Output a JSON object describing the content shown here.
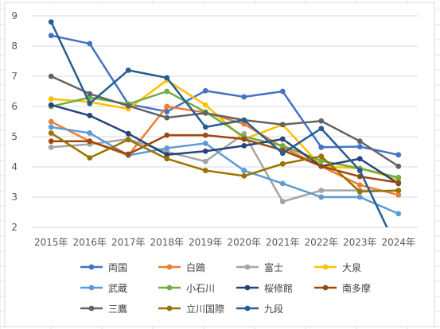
{
  "chart_data": {
    "type": "line",
    "categories": [
      "2015年",
      "2016年",
      "2017年",
      "2018年",
      "2019年",
      "2020年",
      "2021年",
      "2022年",
      "2023年",
      "2024年"
    ],
    "ylim": [
      2,
      9
    ],
    "yticks": [
      "2",
      "3",
      "4",
      "5",
      "6",
      "7",
      "8",
      "9"
    ],
    "grid": true,
    "legend_position": "bottom",
    "series": [
      {
        "name": "両国",
        "color": "#4472C4",
        "values": [
          8.35,
          8.08,
          6.08,
          5.83,
          6.52,
          6.32,
          6.5,
          4.65,
          4.67,
          4.4
        ]
      },
      {
        "name": "白鴎",
        "color": "#ED7D31",
        "values": [
          5.5,
          4.85,
          4.38,
          6.0,
          5.8,
          5.42,
          4.65,
          4.02,
          3.4,
          3.07
        ]
      },
      {
        "name": "富士",
        "color": "#A5A5A5",
        "values": [
          4.65,
          4.75,
          4.92,
          4.5,
          4.18,
          5.1,
          2.85,
          3.22,
          3.22,
          3.2
        ]
      },
      {
        "name": "大泉",
        "color": "#FFC000",
        "values": [
          6.25,
          6.15,
          5.92,
          6.87,
          6.05,
          4.92,
          5.4,
          4.02,
          3.95,
          3.6
        ]
      },
      {
        "name": "武蔵",
        "color": "#5B9BD5",
        "values": [
          5.32,
          5.12,
          4.38,
          4.62,
          4.78,
          3.88,
          3.45,
          3.0,
          3.0,
          2.45
        ]
      },
      {
        "name": "小石川",
        "color": "#70AD47",
        "values": [
          6.0,
          6.3,
          6.08,
          6.5,
          5.82,
          5.0,
          4.7,
          4.2,
          3.95,
          3.65
        ]
      },
      {
        "name": "桜修館",
        "color": "#264478",
        "values": [
          6.05,
          5.7,
          5.1,
          4.4,
          4.52,
          4.7,
          4.92,
          4.02,
          4.27,
          3.45
        ]
      },
      {
        "name": "南多摩",
        "color": "#9E480E",
        "values": [
          4.85,
          4.85,
          4.42,
          5.05,
          5.05,
          4.92,
          4.55,
          4.02,
          3.68,
          3.48
        ]
      },
      {
        "name": "三鷹",
        "color": "#636363",
        "values": [
          7.0,
          6.42,
          6.02,
          5.63,
          5.78,
          5.55,
          5.4,
          5.52,
          4.85,
          4.02
        ]
      },
      {
        "name": "立川国際",
        "color": "#997300",
        "values": [
          5.12,
          4.3,
          4.9,
          4.27,
          3.88,
          3.7,
          4.1,
          4.35,
          3.18,
          3.22
        ]
      },
      {
        "name": "九段",
        "color": "#255E91",
        "values": [
          8.8,
          6.1,
          7.2,
          6.95,
          5.32,
          5.55,
          4.45,
          5.27,
          3.88,
          1.2
        ]
      }
    ]
  }
}
